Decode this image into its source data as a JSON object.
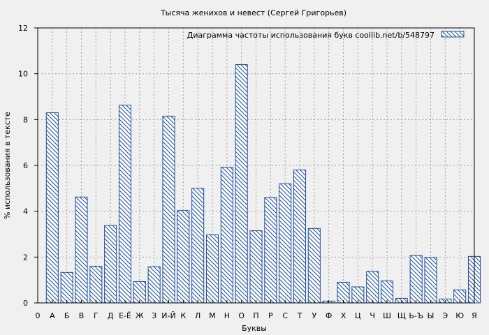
{
  "chart_data": {
    "type": "bar",
    "title": "Тысяча женихов и невест (Сергей Григорьев)",
    "xlabel": "Буквы",
    "ylabel": "% использования в тексте",
    "legend": {
      "label": "Диаграмма частоты использования букв  coollib.net/b/548797",
      "position": "top-right"
    },
    "ylim": [
      0,
      12
    ],
    "yticks": [
      0,
      2,
      4,
      6,
      8,
      10,
      12
    ],
    "x_axis_start_label": "0",
    "categories": [
      "А",
      "Б",
      "В",
      "Г",
      "Д",
      "Е-Ё",
      "Ж",
      "З",
      "И-Й",
      "К",
      "Л",
      "М",
      "Н",
      "О",
      "П",
      "Р",
      "С",
      "Т",
      "У",
      "Ф",
      "Х",
      "Ц",
      "Ч",
      "Ш",
      "Щ",
      "Ь-Ъ",
      "Ы",
      "Э",
      "Ю",
      "Я"
    ],
    "values": [
      8.3,
      1.33,
      4.62,
      1.6,
      3.38,
      8.63,
      0.93,
      1.58,
      8.15,
      4.03,
      5.0,
      2.97,
      5.92,
      10.4,
      3.15,
      4.6,
      5.2,
      5.8,
      3.25,
      0.08,
      0.9,
      0.7,
      1.38,
      0.96,
      0.2,
      2.07,
      1.98,
      0.17,
      0.57,
      2.03
    ],
    "grid": true,
    "colors": {
      "background": "#f0f0f0",
      "bar_stroke": "#1c4fa0",
      "hatch": "#1c4fa0",
      "grid": "#a0a0a0",
      "axis": "#000000"
    }
  }
}
